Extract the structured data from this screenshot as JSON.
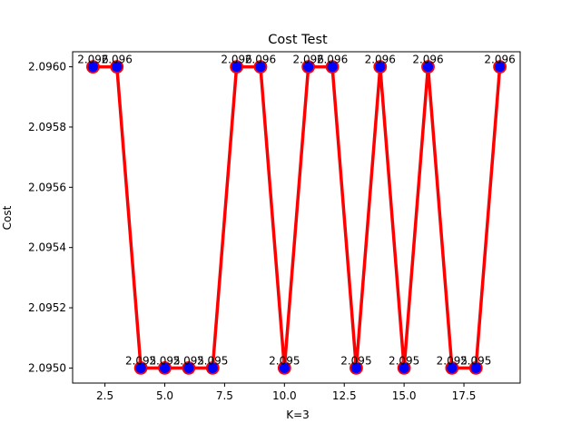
{
  "chart_data": {
    "type": "line",
    "title": "Cost Test",
    "xlabel": "K=3",
    "ylabel": "Cost",
    "xlim": [
      1.15,
      19.85
    ],
    "ylim": [
      2.09495,
      2.09605
    ],
    "x_ticks": [
      2.5,
      5.0,
      7.5,
      10.0,
      12.5,
      15.0,
      17.5
    ],
    "x_tick_labels": [
      "2.5",
      "5.0",
      "7.5",
      "10.0",
      "12.5",
      "15.0",
      "17.5"
    ],
    "y_ticks": [
      2.095,
      2.0952,
      2.0954,
      2.0956,
      2.0958,
      2.096
    ],
    "y_tick_labels": [
      "2.0950",
      "2.0952",
      "2.0954",
      "2.0956",
      "2.0958",
      "2.0960"
    ],
    "grid": false,
    "series": [
      {
        "x": [
          2,
          3,
          4,
          5,
          6,
          7,
          8,
          9,
          10,
          11,
          12,
          13,
          14,
          15,
          16,
          17,
          18,
          19
        ],
        "y": [
          2.096,
          2.096,
          2.095,
          2.095,
          2.095,
          2.095,
          2.096,
          2.096,
          2.095,
          2.096,
          2.096,
          2.095,
          2.096,
          2.095,
          2.096,
          2.095,
          2.095,
          2.096
        ],
        "labels": [
          "2.096",
          "2.096",
          "2.095",
          "2.095",
          "2.095",
          "2.095",
          "2.096",
          "2.096",
          "2.095",
          "2.096",
          "2.096",
          "2.095",
          "2.096",
          "2.095",
          "2.096",
          "2.095",
          "2.095",
          "2.096"
        ],
        "line_color": "#ff0000",
        "marker_face": "#0000ff",
        "marker_edge": "#ff0000"
      }
    ]
  }
}
